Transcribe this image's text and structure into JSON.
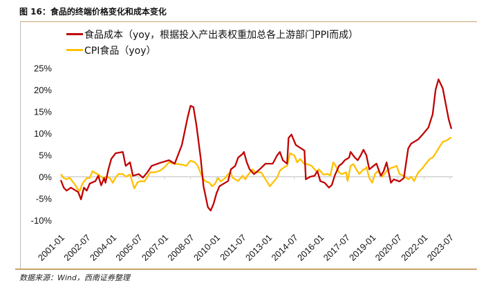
{
  "title": "图 16：食品的终端价格变化和成本变化",
  "source": "数据来源：Wind，西南证券整理",
  "chart_data": {
    "type": "line",
    "title": "图 16：食品的终端价格变化和成本变化",
    "x_unit": "months since 2001-01",
    "xlim": [
      0,
      272
    ],
    "ylim": [
      -10,
      25
    ],
    "yticks": [
      -10,
      -5,
      0,
      5,
      10,
      15,
      20,
      25
    ],
    "ytick_labels": [
      "-10%",
      "-5%",
      "0%",
      "5%",
      "10%",
      "15%",
      "20%",
      "25%"
    ],
    "xticks": [
      0,
      18,
      36,
      54,
      72,
      90,
      108,
      126,
      144,
      162,
      180,
      198,
      216,
      234,
      252,
      270
    ],
    "xtick_labels": [
      "2001-01",
      "2002-07",
      "2004-01",
      "2005-07",
      "2007-01",
      "2008-07",
      "2010-01",
      "2011-07",
      "2013-01",
      "2014-07",
      "2016-01",
      "2017-07",
      "2019-01",
      "2020-07",
      "2022-01",
      "2023-07"
    ],
    "grid": false,
    "legend_position": "top-left",
    "series": [
      {
        "name": "食品成本（yoy，根据投入产出表权重加总各上游部门PPI而成）",
        "color": "#c00000",
        "points": [
          [
            0,
            -0.8
          ],
          [
            2,
            -2.5
          ],
          [
            4,
            -3.2
          ],
          [
            7,
            -2.5
          ],
          [
            12,
            -3.5
          ],
          [
            14,
            -5.2
          ],
          [
            16,
            -2.5
          ],
          [
            18,
            -3.2
          ],
          [
            20,
            -1.6
          ],
          [
            24,
            -1
          ],
          [
            26,
            0.2
          ],
          [
            28,
            -2
          ],
          [
            30,
            -0.3
          ],
          [
            31,
            -1.4
          ],
          [
            33,
            1.7
          ],
          [
            35,
            4.1
          ],
          [
            38,
            5.4
          ],
          [
            43,
            5.7
          ],
          [
            45,
            2.5
          ],
          [
            48,
            3.3
          ],
          [
            50,
            0.2
          ],
          [
            54,
            0.6
          ],
          [
            57,
            -0.2
          ],
          [
            60,
            1
          ],
          [
            63,
            2.5
          ],
          [
            69,
            3.2
          ],
          [
            75,
            3.8
          ],
          [
            79,
            3
          ],
          [
            84,
            7.3
          ],
          [
            88,
            13.7
          ],
          [
            90,
            16.3
          ],
          [
            92,
            16
          ],
          [
            94,
            12
          ],
          [
            97,
            4.4
          ],
          [
            99,
            -2.2
          ],
          [
            102,
            -7
          ],
          [
            104,
            -7.8
          ],
          [
            106,
            -6.2
          ],
          [
            108,
            -3.8
          ],
          [
            110,
            -2.2
          ],
          [
            114,
            -1.4
          ],
          [
            116,
            -1
          ],
          [
            118,
            1.7
          ],
          [
            121,
            2.5
          ],
          [
            123,
            4.4
          ],
          [
            126,
            5.2
          ],
          [
            127,
            5.7
          ],
          [
            129,
            3.3
          ],
          [
            131,
            1.7
          ],
          [
            134,
            0.6
          ],
          [
            138,
            1.7
          ],
          [
            142,
            3
          ],
          [
            147,
            3
          ],
          [
            150,
            4.9
          ],
          [
            152,
            5.7
          ],
          [
            154,
            3.8
          ],
          [
            157,
            3
          ],
          [
            158,
            8.9
          ],
          [
            160,
            9.7
          ],
          [
            163,
            7.3
          ],
          [
            169,
            6
          ],
          [
            170,
            -0.6
          ],
          [
            173,
            0
          ],
          [
            176,
            0.2
          ],
          [
            178,
            1.3
          ],
          [
            180,
            -1
          ],
          [
            183,
            -1.4
          ],
          [
            186,
            -2.5
          ],
          [
            188,
            -1.9
          ],
          [
            190,
            0.2
          ],
          [
            193,
            2.5
          ],
          [
            195,
            3
          ],
          [
            197,
            3.8
          ],
          [
            200,
            4.4
          ],
          [
            201,
            5.7
          ],
          [
            204,
            4.4
          ],
          [
            206,
            3.8
          ],
          [
            208,
            4.9
          ],
          [
            210,
            6.2
          ],
          [
            212,
            4.9
          ],
          [
            214,
            1.7
          ],
          [
            217,
            2.5
          ],
          [
            219,
            3
          ],
          [
            222,
            0.2
          ],
          [
            224,
            1.3
          ],
          [
            226,
            3.3
          ],
          [
            229,
            -1.4
          ],
          [
            231,
            -0.6
          ],
          [
            235,
            -1.1
          ],
          [
            238,
            -0.3
          ],
          [
            241,
            6.5
          ],
          [
            243,
            7.6
          ],
          [
            248,
            8.6
          ],
          [
            251,
            9.7
          ],
          [
            255,
            11.3
          ],
          [
            258,
            14.4
          ],
          [
            260,
            20
          ],
          [
            262,
            22.4
          ],
          [
            265,
            20.3
          ],
          [
            267,
            16.8
          ],
          [
            269,
            13.3
          ],
          [
            271,
            11
          ]
        ]
      },
      {
        "name": "CPI食品（yoy）",
        "color": "#ffc000",
        "points": [
          [
            0,
            0.6
          ],
          [
            2,
            -0.3
          ],
          [
            4,
            -0.6
          ],
          [
            6,
            -0.2
          ],
          [
            7,
            -0.6
          ],
          [
            10,
            -1.9
          ],
          [
            12,
            -3
          ],
          [
            13,
            -3.3
          ],
          [
            15,
            -1.6
          ],
          [
            18,
            -0.3
          ],
          [
            20,
            -0.3
          ],
          [
            22,
            1.3
          ],
          [
            23,
            1
          ],
          [
            26,
            0.5
          ],
          [
            29,
            -0.3
          ],
          [
            32,
            0
          ],
          [
            34,
            -0.3
          ],
          [
            36,
            -1.4
          ],
          [
            38,
            -0.2
          ],
          [
            40,
            0.6
          ],
          [
            43,
            0.6
          ],
          [
            45,
            0
          ],
          [
            48,
            0.5
          ],
          [
            50,
            -1.6
          ],
          [
            51,
            -2.7
          ],
          [
            53,
            -1.4
          ],
          [
            55,
            -1
          ],
          [
            58,
            -1.1
          ],
          [
            62,
            1
          ],
          [
            65,
            1
          ],
          [
            69,
            1.4
          ],
          [
            72,
            2.2
          ],
          [
            75,
            3.3
          ],
          [
            78,
            3
          ],
          [
            84,
            2.8
          ],
          [
            87,
            2.5
          ],
          [
            90,
            3.7
          ],
          [
            93,
            3.3
          ],
          [
            95,
            2.5
          ],
          [
            98,
            0
          ],
          [
            100,
            -1
          ],
          [
            103,
            -1.4
          ],
          [
            105,
            -2.2
          ],
          [
            107,
            -1.6
          ],
          [
            109,
            -0.3
          ],
          [
            111,
            -1.1
          ],
          [
            114,
            -0.3
          ],
          [
            116,
            0.6
          ],
          [
            118,
            1
          ],
          [
            119,
            -0.2
          ],
          [
            123,
            -1
          ],
          [
            126,
            0.2
          ],
          [
            128,
            -0.6
          ],
          [
            130,
            0.5
          ],
          [
            133,
            1.7
          ],
          [
            135,
            1
          ],
          [
            139,
            1
          ],
          [
            142,
            -0.6
          ],
          [
            145,
            -2.2
          ],
          [
            147,
            -1.4
          ],
          [
            150,
            -0.2
          ],
          [
            152,
            1.4
          ],
          [
            155,
            2.2
          ],
          [
            157,
            2.5
          ],
          [
            159,
            5.4
          ],
          [
            162,
            4.9
          ],
          [
            164,
            3.3
          ],
          [
            166,
            4.1
          ],
          [
            169,
            2.9
          ],
          [
            171,
            2.9
          ],
          [
            174,
            2.5
          ],
          [
            176,
            1.7
          ],
          [
            178,
            1
          ],
          [
            179,
            1.7
          ],
          [
            182,
            0.5
          ],
          [
            185,
            0.6
          ],
          [
            187,
            0.3
          ],
          [
            189,
            3.3
          ],
          [
            190,
            2.9
          ],
          [
            193,
            1
          ],
          [
            195,
            0.6
          ],
          [
            198,
            1
          ],
          [
            199,
            -1
          ],
          [
            201,
            2.5
          ],
          [
            203,
            2.9
          ],
          [
            205,
            1.7
          ],
          [
            207,
            0.6
          ],
          [
            210,
            1.7
          ],
          [
            211,
            1.7
          ],
          [
            212,
            2.2
          ],
          [
            214,
            -0.3
          ],
          [
            216,
            -1.4
          ],
          [
            218,
            0.6
          ],
          [
            220,
            1.3
          ],
          [
            223,
            0
          ],
          [
            226,
            1.3
          ],
          [
            229,
            2
          ],
          [
            231,
            2.2
          ],
          [
            233,
            2.5
          ],
          [
            235,
            0.6
          ],
          [
            238,
            0.2
          ],
          [
            241,
            -0.6
          ],
          [
            243,
            0
          ],
          [
            245,
            -1
          ],
          [
            248,
            1
          ],
          [
            251,
            2
          ],
          [
            253,
            2.9
          ],
          [
            256,
            4.1
          ],
          [
            258,
            4.4
          ],
          [
            260,
            5.4
          ],
          [
            263,
            7
          ],
          [
            265,
            8
          ],
          [
            268,
            8.4
          ],
          [
            270,
            8.9
          ],
          [
            271,
            9
          ]
        ]
      }
    ]
  }
}
